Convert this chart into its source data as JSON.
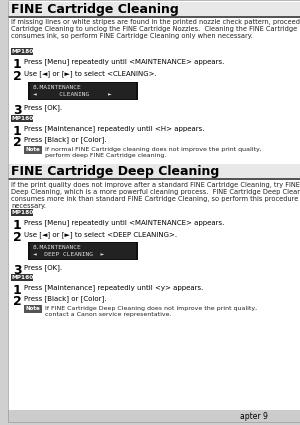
{
  "bg_color": "#d0d0d0",
  "page_bg": "#ffffff",
  "title1": "FINE Cartridge Cleaning",
  "title2": "FINE Cartridge Deep Cleaning",
  "intro1": "If missing lines or white stripes are found in the printed nozzle check pattern, proceed with a FINE\nCartridge Cleaning to unclog the FINE Cartridge Nozzles.  Cleaning the FINE Cartridge Nozzles\nconsumes ink, so perform FINE Cartridge Cleaning only when necessary.",
  "intro2": "If the print quality does not improve after a standard FINE Cartridge Cleaning, try FINE Cartridge\nDeep Cleaning, which is a more powerful cleaning process.  FINE Cartridge Deep Cleaning\nconsumes more ink than standard FINE Cartridge Cleaning, so perform this procedure only when\nnecessary.",
  "badge1a": "MP180",
  "badge1b": "MP160",
  "badge2a": "MP180",
  "badge2b": "MP160",
  "lcd1_line1": "8 . M A I N T E N A N C E",
  "lcd1_line2": "◄         C L E A N I N G       ►",
  "lcd2_line1": "8 . M A I N T E N A N C E",
  "lcd2_line2": "◄   D E E P   C L E A N I N G   ►",
  "s1_1": "Press [Menu] repeatedly until <MAINTENANCE> appears.",
  "s1_2": "Use [◄] or [►] to select <CLEANING>.",
  "s1_3": "Press [OK].",
  "m1_1": "Press [Maintenance] repeatedly until <H> appears.",
  "m1_2": "Press [Black] or [Color].",
  "note_label": "Note",
  "note1": "If normal FINE Cartridge cleaning does not improve the print quality,\nperform deep FINE Cartridge cleaning.",
  "s2_1": "Press [Menu] repeatedly until <MAINTENANCE> appears.",
  "s2_2": "Use [◄] or [►] to select <DEEP CLEANING>.",
  "s2_3": "Press [OK].",
  "e1_1": "Press [Maintenance] repeatedly until <y> appears.",
  "e1_2": "Press [Black] or [Color].",
  "note2": "If FINE Cartridge Deep Cleaning does not improve the print quality,\ncontact a Canon service representative.",
  "footer": "apter 9"
}
